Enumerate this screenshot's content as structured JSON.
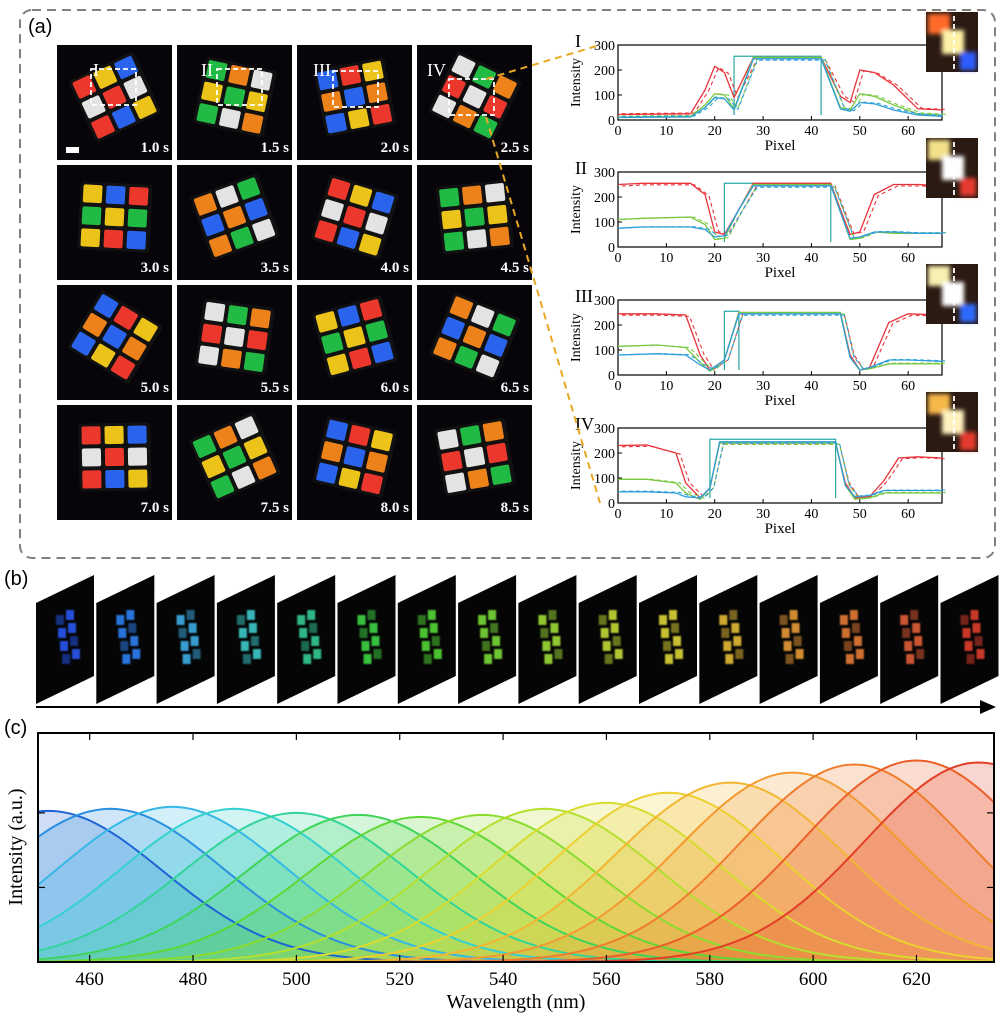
{
  "panel_labels": {
    "a": "(a)",
    "b": "(b)",
    "c": "(c)"
  },
  "frames": [
    {
      "time": "1.0 s",
      "roi": "I"
    },
    {
      "time": "1.5 s",
      "roi": "II"
    },
    {
      "time": "2.0 s",
      "roi": "III"
    },
    {
      "time": "2.5 s",
      "roi": "IV"
    },
    {
      "time": "3.0 s"
    },
    {
      "time": "3.5 s"
    },
    {
      "time": "4.0 s"
    },
    {
      "time": "4.5 s"
    },
    {
      "time": "5.0 s"
    },
    {
      "time": "5.5 s"
    },
    {
      "time": "6.0 s"
    },
    {
      "time": "6.5 s"
    },
    {
      "time": "7.0 s"
    },
    {
      "time": "7.5 s"
    },
    {
      "time": "8.0 s"
    },
    {
      "time": "8.5 s"
    }
  ],
  "spectral_frames": {
    "count": 16,
    "tints": [
      "#2a5cff",
      "#2f86ff",
      "#3fb6f0",
      "#3fd4d4",
      "#35d59a",
      "#3fe04a",
      "#57e33a",
      "#7ee53a",
      "#a6e83a",
      "#cfe63a",
      "#e8e03a",
      "#f0c53a",
      "#f3a23a",
      "#f0823a",
      "#ec633a",
      "#e8402e"
    ]
  },
  "chart_data": [
    {
      "type": "line",
      "panel": "a",
      "title": "I",
      "xlabel": "Pixel",
      "ylabel": "Intensity",
      "xlim": [
        0,
        67
      ],
      "ylim": [
        0,
        300
      ],
      "xticks": [
        0,
        10,
        20,
        30,
        40,
        50,
        60
      ],
      "yticks": [
        0,
        100,
        200,
        300
      ],
      "series": [
        {
          "name": "red",
          "color": "#e8333a",
          "x": [
            0,
            15,
            18,
            20,
            22,
            24,
            28,
            42,
            46,
            48,
            50,
            53,
            57,
            62,
            67
          ],
          "values": [
            22,
            25,
            120,
            215,
            190,
            90,
            250,
            250,
            95,
            70,
            200,
            190,
            140,
            45,
            40
          ]
        },
        {
          "name": "green",
          "color": "#7ac943",
          "x": [
            0,
            15,
            18,
            20,
            22,
            24,
            28,
            42,
            46,
            48,
            50,
            53,
            57,
            62,
            67
          ],
          "values": [
            12,
            15,
            60,
            105,
            100,
            45,
            250,
            250,
            50,
            40,
            105,
            95,
            60,
            25,
            20
          ]
        },
        {
          "name": "blue",
          "color": "#2e9fd9",
          "x": [
            0,
            15,
            18,
            20,
            22,
            24,
            28,
            42,
            46,
            48,
            50,
            53,
            57,
            62,
            67
          ],
          "values": [
            10,
            12,
            50,
            90,
            85,
            40,
            245,
            245,
            45,
            35,
            70,
            65,
            40,
            20,
            15
          ]
        }
      ]
    },
    {
      "type": "line",
      "panel": "a",
      "title": "II",
      "xlabel": "Pixel",
      "ylabel": "Intensity",
      "xlim": [
        0,
        67
      ],
      "ylim": [
        0,
        300
      ],
      "xticks": [
        0,
        10,
        20,
        30,
        40,
        50,
        60
      ],
      "yticks": [
        0,
        100,
        200,
        300
      ],
      "series": [
        {
          "name": "red",
          "color": "#e8333a",
          "x": [
            0,
            5,
            15,
            18,
            20,
            22,
            25,
            28,
            44,
            46,
            48,
            50,
            53,
            57,
            62,
            67
          ],
          "values": [
            250,
            255,
            255,
            210,
            60,
            50,
            150,
            255,
            255,
            150,
            50,
            60,
            210,
            250,
            250,
            245
          ]
        },
        {
          "name": "green",
          "color": "#7ac943",
          "x": [
            0,
            5,
            15,
            18,
            20,
            22,
            25,
            28,
            44,
            46,
            48,
            50,
            53,
            57,
            62,
            67
          ],
          "values": [
            110,
            115,
            120,
            90,
            30,
            35,
            150,
            250,
            250,
            140,
            30,
            35,
            60,
            55,
            55,
            55
          ]
        },
        {
          "name": "blue",
          "color": "#2e9fd9",
          "x": [
            0,
            5,
            15,
            18,
            20,
            22,
            25,
            28,
            44,
            46,
            48,
            50,
            53,
            57,
            62,
            67
          ],
          "values": [
            75,
            80,
            80,
            70,
            40,
            45,
            150,
            245,
            245,
            140,
            35,
            40,
            60,
            60,
            55,
            55
          ]
        }
      ]
    },
    {
      "type": "line",
      "panel": "a",
      "title": "III",
      "xlabel": "Pixel",
      "ylabel": "Intensity",
      "xlim": [
        0,
        67
      ],
      "ylim": [
        0,
        300
      ],
      "xticks": [
        0,
        10,
        20,
        30,
        40,
        50,
        60
      ],
      "yticks": [
        0,
        100,
        200,
        300
      ],
      "series": [
        {
          "name": "red",
          "color": "#e8333a",
          "x": [
            0,
            8,
            14,
            17,
            19,
            22,
            25,
            46,
            48,
            50,
            52,
            56,
            60,
            67
          ],
          "values": [
            245,
            245,
            240,
            80,
            20,
            60,
            250,
            250,
            80,
            20,
            30,
            210,
            245,
            240
          ]
        },
        {
          "name": "green",
          "color": "#7ac943",
          "x": [
            0,
            8,
            14,
            17,
            19,
            22,
            25,
            46,
            48,
            50,
            52,
            56,
            60,
            67
          ],
          "values": [
            115,
            120,
            110,
            50,
            15,
            60,
            250,
            250,
            70,
            20,
            25,
            45,
            45,
            45
          ]
        },
        {
          "name": "blue",
          "color": "#2e9fd9",
          "x": [
            0,
            8,
            14,
            17,
            19,
            22,
            25,
            46,
            48,
            50,
            52,
            56,
            60,
            67
          ],
          "values": [
            80,
            85,
            80,
            40,
            20,
            60,
            245,
            245,
            70,
            20,
            30,
            60,
            60,
            55
          ]
        }
      ]
    },
    {
      "type": "line",
      "panel": "a",
      "title": "IV",
      "xlabel": "Pixel",
      "ylabel": "Intensity",
      "xlim": [
        0,
        67
      ],
      "ylim": [
        0,
        300
      ],
      "xticks": [
        0,
        10,
        20,
        30,
        40,
        50,
        60
      ],
      "yticks": [
        0,
        100,
        200,
        300
      ],
      "series": [
        {
          "name": "red",
          "color": "#e8333a",
          "x": [
            0,
            6,
            12,
            14,
            17,
            19,
            21,
            45,
            47,
            49,
            52,
            55,
            58,
            62,
            67
          ],
          "values": [
            230,
            232,
            200,
            80,
            20,
            60,
            240,
            240,
            80,
            20,
            25,
            90,
            180,
            185,
            180
          ]
        },
        {
          "name": "green",
          "color": "#7ac943",
          "x": [
            0,
            6,
            12,
            14,
            17,
            19,
            21,
            45,
            47,
            49,
            52,
            55,
            58,
            62,
            67
          ],
          "values": [
            95,
            95,
            80,
            40,
            15,
            60,
            240,
            240,
            70,
            15,
            20,
            40,
            40,
            40,
            40
          ]
        },
        {
          "name": "blue",
          "color": "#2e9fd9",
          "x": [
            0,
            6,
            12,
            14,
            17,
            19,
            21,
            45,
            47,
            49,
            52,
            55,
            58,
            62,
            67
          ],
          "values": [
            45,
            45,
            40,
            25,
            20,
            60,
            245,
            245,
            70,
            25,
            30,
            50,
            50,
            50,
            50
          ]
        }
      ]
    },
    {
      "type": "area",
      "panel": "c",
      "xlabel": "Wavelength (nm)",
      "ylabel": "Intensity (a.u.)",
      "xlim": [
        450,
        635
      ],
      "ylim": [
        0,
        1
      ],
      "xticks": [
        460,
        480,
        500,
        520,
        540,
        560,
        580,
        600,
        620
      ],
      "band_width_nm": 22,
      "series": [
        {
          "name": "band-1",
          "center": 452,
          "peak": 0.75,
          "color": "#1e64d2"
        },
        {
          "name": "band-2",
          "center": 464,
          "peak": 0.76,
          "color": "#2a8fe0"
        },
        {
          "name": "band-3",
          "center": 476,
          "peak": 0.77,
          "color": "#35b8e6"
        },
        {
          "name": "band-4",
          "center": 488,
          "peak": 0.76,
          "color": "#33d1cf"
        },
        {
          "name": "band-5",
          "center": 500,
          "peak": 0.74,
          "color": "#32d49a"
        },
        {
          "name": "band-6",
          "center": 512,
          "peak": 0.73,
          "color": "#3fd45a"
        },
        {
          "name": "band-7",
          "center": 524,
          "peak": 0.72,
          "color": "#5fd835"
        },
        {
          "name": "band-8",
          "center": 536,
          "peak": 0.73,
          "color": "#8cdc30"
        },
        {
          "name": "band-9",
          "center": 548,
          "peak": 0.76,
          "color": "#b4df2e"
        },
        {
          "name": "band-10",
          "center": 560,
          "peak": 0.79,
          "color": "#d8dc2e"
        },
        {
          "name": "band-11",
          "center": 572,
          "peak": 0.84,
          "color": "#ecd02f"
        },
        {
          "name": "band-12",
          "center": 584,
          "peak": 0.89,
          "color": "#f2b632"
        },
        {
          "name": "band-13",
          "center": 596,
          "peak": 0.94,
          "color": "#f39a30"
        },
        {
          "name": "band-14",
          "center": 608,
          "peak": 0.98,
          "color": "#f07d2e"
        },
        {
          "name": "band-15",
          "center": 620,
          "peak": 1.0,
          "color": "#eb5f2a"
        },
        {
          "name": "band-16",
          "center": 632,
          "peak": 0.99,
          "color": "#e33f26"
        }
      ]
    }
  ]
}
